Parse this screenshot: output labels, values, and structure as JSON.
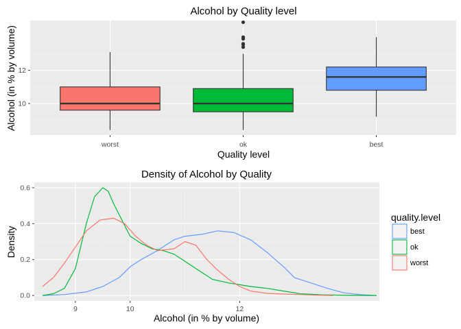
{
  "chart_data": [
    {
      "type": "box",
      "title": "Alcohol by Quality level",
      "xlabel": "Quality level",
      "ylabel": "Alcohol (in % by volume)",
      "ylim": [
        8.1,
        15.0
      ],
      "yticks": [
        10,
        12
      ],
      "ytick_labels": [
        "10",
        "12"
      ],
      "grid": true,
      "categories": [
        "worst",
        "ok",
        "best"
      ],
      "boxes": [
        {
          "name": "worst",
          "color": "#F8766D",
          "whisker_low": 8.4,
          "q1": 9.6,
          "median": 10.0,
          "q3": 11.0,
          "whisker_high": 13.1,
          "outliers": []
        },
        {
          "name": "ok",
          "color": "#00BA38",
          "whisker_low": 8.4,
          "q1": 9.5,
          "median": 10.0,
          "q3": 10.9,
          "whisker_high": 13.0,
          "outliers": [
            13.4,
            13.55,
            13.6,
            13.9,
            14.0,
            14.9
          ]
        },
        {
          "name": "best",
          "color": "#619CFF",
          "whisker_low": 9.2,
          "q1": 10.8,
          "median": 11.6,
          "q3": 12.2,
          "whisker_high": 14.0,
          "outliers": []
        }
      ]
    },
    {
      "type": "line",
      "title": "Density of Alcohol by Quality",
      "xlabel": "Alcohol (in % by volume)",
      "ylabel": "Density",
      "xlim": [
        8.25,
        14.55
      ],
      "ylim": [
        -0.03,
        0.63
      ],
      "xticks": [
        9,
        10,
        12
      ],
      "xtick_labels": [
        "9",
        "10",
        "12"
      ],
      "yticks": [
        0.0,
        0.2,
        0.4,
        0.6
      ],
      "ytick_labels": [
        "0.0",
        "0.2",
        "0.4",
        "0.6"
      ],
      "grid": true,
      "legend": {
        "title": "quality.level",
        "position": "right"
      },
      "series": [
        {
          "name": "best",
          "color": "#619CFF",
          "x": [
            8.4,
            8.8,
            9.2,
            9.5,
            9.8,
            10.0,
            10.2,
            10.5,
            10.8,
            11.0,
            11.3,
            11.6,
            11.9,
            12.2,
            12.5,
            12.8,
            13.0,
            13.3,
            13.6,
            13.9,
            14.2,
            14.5
          ],
          "y": [
            0.0,
            0.005,
            0.02,
            0.05,
            0.1,
            0.16,
            0.2,
            0.25,
            0.31,
            0.33,
            0.34,
            0.36,
            0.35,
            0.31,
            0.24,
            0.16,
            0.1,
            0.07,
            0.04,
            0.015,
            0.005,
            0.0
          ]
        },
        {
          "name": "ok",
          "color": "#00BA38",
          "x": [
            8.4,
            8.6,
            8.8,
            9.0,
            9.2,
            9.35,
            9.5,
            9.6,
            9.7,
            9.85,
            10.0,
            10.2,
            10.4,
            10.6,
            10.8,
            11.0,
            11.2,
            11.5,
            11.8,
            12.0,
            12.2,
            12.5,
            12.8,
            13.1,
            13.5,
            14.0,
            14.5
          ],
          "y": [
            0.0,
            0.01,
            0.04,
            0.15,
            0.4,
            0.55,
            0.6,
            0.58,
            0.51,
            0.42,
            0.33,
            0.29,
            0.26,
            0.25,
            0.23,
            0.19,
            0.15,
            0.09,
            0.07,
            0.06,
            0.05,
            0.04,
            0.025,
            0.01,
            0.004,
            0.001,
            0.0
          ]
        },
        {
          "name": "worst",
          "color": "#F8766D",
          "x": [
            8.4,
            8.6,
            8.8,
            9.0,
            9.2,
            9.45,
            9.7,
            9.9,
            10.1,
            10.3,
            10.5,
            10.8,
            11.0,
            11.2,
            11.4,
            11.6,
            11.8,
            12.0,
            12.2,
            12.5,
            12.8,
            13.1,
            13.4,
            13.7
          ],
          "y": [
            0.05,
            0.1,
            0.18,
            0.27,
            0.36,
            0.42,
            0.43,
            0.4,
            0.33,
            0.28,
            0.25,
            0.26,
            0.3,
            0.28,
            0.2,
            0.14,
            0.09,
            0.05,
            0.025,
            0.012,
            0.008,
            0.005,
            0.002,
            0.0
          ]
        }
      ]
    }
  ]
}
